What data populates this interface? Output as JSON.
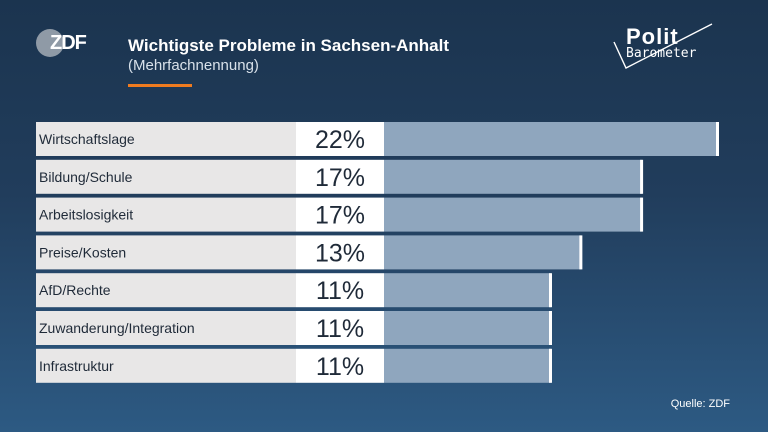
{
  "header": {
    "logo_text": "ZDF",
    "title": "Wichtigste Probleme in Sachsen-Anhalt",
    "subtitle": "(Mehrfachnennung)",
    "brand_top": "Polit",
    "brand_bottom": "Barometer"
  },
  "colors": {
    "label_bg": "#e8e7e7",
    "value_bg": "#ffffff",
    "bar_fill": "#8fa6be",
    "bar_end": "#ffffff",
    "accent": "#f07b1f"
  },
  "chart_data": {
    "type": "bar",
    "orientation": "horizontal",
    "title": "Wichtigste Probleme in Sachsen-Anhalt",
    "subtitle": "(Mehrfachnennung)",
    "unit": "%",
    "categories": [
      "Wirtschaftslage",
      "Bildung/Schule",
      "Arbeitslosigkeit",
      "Preise/Kosten",
      "AfD/Rechte",
      "Zuwanderung/Integration",
      "Infrastruktur"
    ],
    "values": [
      22,
      17,
      17,
      13,
      11,
      11,
      11
    ],
    "xlim": [
      0,
      22
    ]
  },
  "footer": {
    "source": "Quelle: ZDF"
  }
}
